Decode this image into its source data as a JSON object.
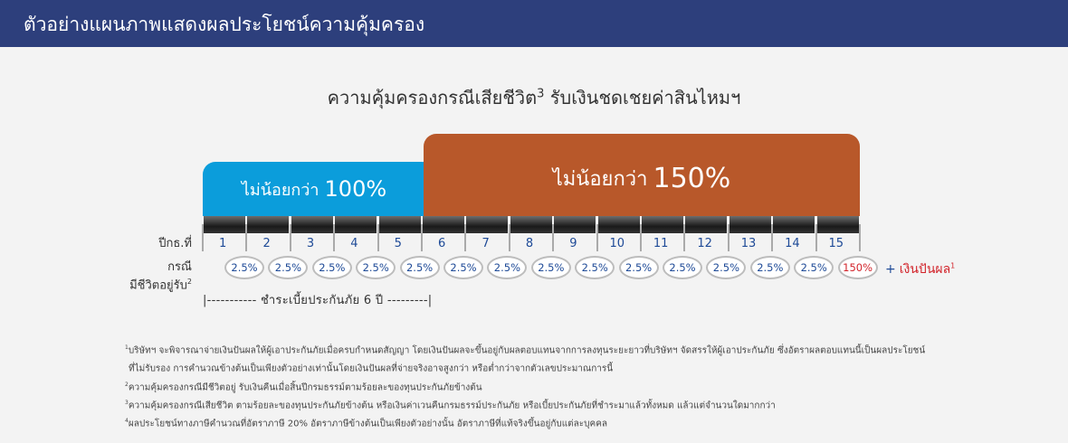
{
  "header": {
    "title": "ตัวอย่างแผนภาพแสดงผลประโยชน์ความคุ้มครอง"
  },
  "subtitle": {
    "text": "ความคุ้มครองกรณีเสียชีวิต",
    "sup": "3",
    "suffix": "รับเงินชดเชยค่าสินไหมฯ"
  },
  "coverage": {
    "low": {
      "prefix": "ไม่น้อยกว่า",
      "value": "100%"
    },
    "high": {
      "prefix": "ไม่น้อยกว่า",
      "value": "150%"
    }
  },
  "labels": {
    "year": "ปีกธ.ที่",
    "survival_line1": "กรณี",
    "survival_line2": "มีชีวิตอยู่รับ",
    "survival_sup": "2"
  },
  "years": [
    "1",
    "2",
    "3",
    "4",
    "5",
    "6",
    "7",
    "8",
    "9",
    "10",
    "11",
    "12",
    "13",
    "14",
    "15"
  ],
  "rates": [
    "2.5%",
    "2.5%",
    "2.5%",
    "2.5%",
    "2.5%",
    "2.5%",
    "2.5%",
    "2.5%",
    "2.5%",
    "2.5%",
    "2.5%",
    "2.5%",
    "2.5%",
    "2.5%",
    "150%"
  ],
  "dividend": {
    "plus": "+",
    "text": "เงินปันผล",
    "sup": "1"
  },
  "premium_period": "|----------- ชำระเบี้ยประกันภัย 6 ปี ---------|",
  "notes": [
    {
      "sup": "1",
      "text": "บริษัทฯ จะพิจารณาจ่ายเงินปันผลให้ผู้เอาประกันภัยเมื่อครบกำหนดสัญญา โดยเงินปันผลจะขึ้นอยู่กับผลตอบแทนจากการลงทุนระยะยาวที่บริษัทฯ จัดสรรให้ผู้เอาประกันภัย ซึ่งอัตราผลตอบแทนนี้เป็นผลประโยชน์"
    },
    {
      "sup": "",
      "text": "ที่ไม่รับรอง การคำนวณข้างต้นเป็นเพียงตัวอย่างเท่านั้นโดยเงินปันผลที่จ่ายจริงอาจสูงกว่า หรือต่ำกว่าจากตัวเลขประมาณการนี้"
    },
    {
      "sup": "2",
      "text": "ความคุ้มครองกรณีมีชีวิตอยู่ รับเงินคืนเมื่อสิ้นปีกรมธรรม์ตามร้อยละของทุนประกันภัยข้างต้น"
    },
    {
      "sup": "3",
      "text": "ความคุ้มครองกรณีเสียชีวิต ตามร้อยละของทุนประกันภัยข้างต้น หรือเงินค่าเวนคืนกรมธรรม์ประกันภัย หรือเบี้ยประกันภัยที่ชำระมาแล้วทั้งหมด แล้วแต่จำนวนใดมากกว่า"
    },
    {
      "sup": "4",
      "text": "ผลประโยชน์ทางภาษีคำนวณที่อัตราภาษี 20% อัตราภาษีข้างต้นเป็นเพียงตัวอย่างนั้น อัตราภาษีที่แท้จริงขึ้นอยู่กับแต่ละบุคคล"
    }
  ]
}
